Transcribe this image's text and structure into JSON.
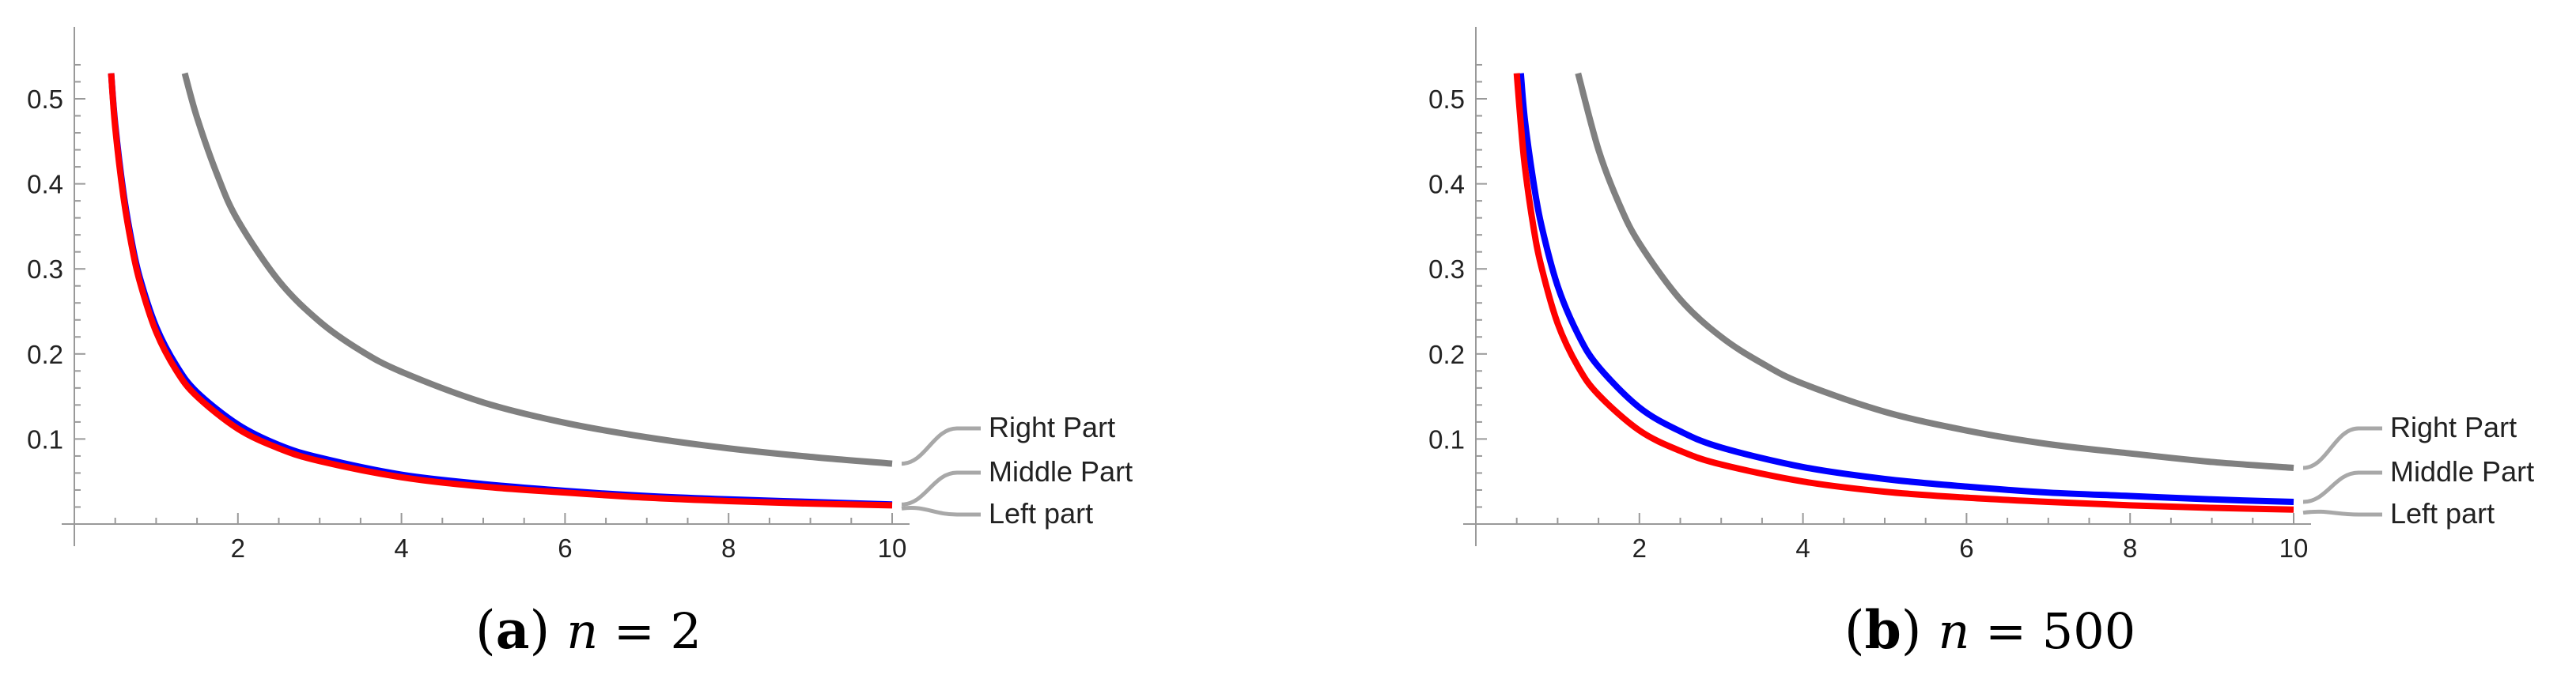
{
  "chart_data": [
    {
      "type": "line",
      "caption": {
        "label": "a",
        "variable": "n",
        "value": "2"
      },
      "xlim": [
        0,
        10.2
      ],
      "ylim": [
        0,
        0.56
      ],
      "xticks": [
        2,
        4,
        6,
        8,
        10
      ],
      "yticks": [
        0.1,
        0.2,
        0.3,
        0.4,
        0.5
      ],
      "grid": false,
      "legend_placement": "right",
      "series": [
        {
          "name": "Right Part",
          "color": "#808080",
          "x": [
            1.35,
            1.5,
            1.75,
            2,
            2.5,
            3,
            3.5,
            4,
            5,
            6,
            7,
            8,
            9,
            10
          ],
          "y": [
            0.53,
            0.478,
            0.41,
            0.357,
            0.286,
            0.238,
            0.204,
            0.179,
            0.143,
            0.119,
            0.102,
            0.089,
            0.079,
            0.071
          ]
        },
        {
          "name": "Middle Part",
          "color": "#0000ff",
          "x": [
            0.45,
            0.5,
            0.6,
            0.7,
            0.8,
            1,
            1.25,
            1.5,
            2,
            2.5,
            3,
            4,
            5,
            6,
            7,
            8,
            9,
            10
          ],
          "y": [
            0.53,
            0.47,
            0.39,
            0.333,
            0.29,
            0.232,
            0.186,
            0.155,
            0.117,
            0.093,
            0.078,
            0.058,
            0.047,
            0.039,
            0.033,
            0.029,
            0.026,
            0.023
          ]
        },
        {
          "name": "Left part",
          "color": "#ff0000",
          "x": [
            0.45,
            0.5,
            0.6,
            0.7,
            0.8,
            1,
            1.25,
            1.5,
            2,
            2.5,
            3,
            4,
            5,
            6,
            7,
            8,
            9,
            10
          ],
          "y": [
            0.53,
            0.466,
            0.385,
            0.328,
            0.285,
            0.226,
            0.18,
            0.15,
            0.112,
            0.089,
            0.074,
            0.055,
            0.044,
            0.037,
            0.031,
            0.027,
            0.024,
            0.022
          ]
        }
      ]
    },
    {
      "type": "line",
      "caption": {
        "label": "b",
        "variable": "n",
        "value": "500"
      },
      "xlim": [
        0,
        10.2
      ],
      "ylim": [
        0,
        0.56
      ],
      "xticks": [
        2,
        4,
        6,
        8,
        10
      ],
      "yticks": [
        0.1,
        0.2,
        0.3,
        0.4,
        0.5
      ],
      "grid": false,
      "legend_placement": "right",
      "series": [
        {
          "name": "Right Part",
          "color": "#808080",
          "x": [
            1.25,
            1.5,
            1.75,
            2,
            2.5,
            3,
            3.5,
            4,
            5,
            6,
            7,
            8,
            9,
            10
          ],
          "y": [
            0.53,
            0.44,
            0.377,
            0.33,
            0.264,
            0.22,
            0.189,
            0.165,
            0.132,
            0.11,
            0.094,
            0.083,
            0.073,
            0.066
          ]
        },
        {
          "name": "Middle Part",
          "color": "#0000ff",
          "x": [
            0.55,
            0.6,
            0.7,
            0.8,
            1,
            1.25,
            1.5,
            2,
            2.5,
            3,
            4,
            5,
            6,
            7,
            8,
            9,
            10
          ],
          "y": [
            0.53,
            0.475,
            0.405,
            0.352,
            0.28,
            0.223,
            0.185,
            0.137,
            0.109,
            0.09,
            0.067,
            0.053,
            0.044,
            0.037,
            0.033,
            0.029,
            0.026
          ]
        },
        {
          "name": "Left part",
          "color": "#ff0000",
          "x": [
            0.5,
            0.55,
            0.6,
            0.7,
            0.8,
            1,
            1.25,
            1.5,
            2,
            2.5,
            3,
            4,
            5,
            6,
            7,
            8,
            9,
            10
          ],
          "y": [
            0.53,
            0.47,
            0.42,
            0.352,
            0.303,
            0.236,
            0.185,
            0.152,
            0.11,
            0.086,
            0.07,
            0.05,
            0.038,
            0.031,
            0.026,
            0.022,
            0.019,
            0.017
          ]
        }
      ]
    }
  ]
}
